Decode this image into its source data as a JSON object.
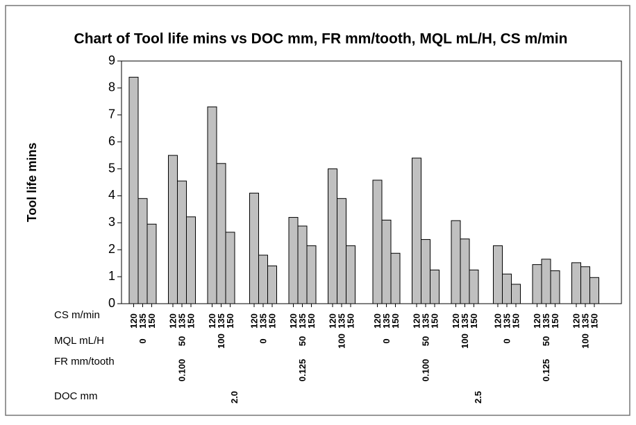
{
  "chart_data": {
    "type": "bar",
    "title": "Chart of Tool life mins vs DOC mm, FR mm/tooth, MQL mL/H, CS m/min",
    "y_label": "Tool life mins",
    "level_names": [
      "CS m/min",
      "MQL mL/H",
      "FR mm/tooth",
      "DOC mm"
    ],
    "cs_levels": [
      "120",
      "135",
      "150"
    ],
    "mql_levels": [
      "0",
      "50",
      "100"
    ],
    "fr_levels": [
      "0.100",
      "0.125"
    ],
    "doc_levels": [
      "2.0",
      "2.5"
    ],
    "color": "#c0c0c0",
    "values": [
      8.4,
      3.9,
      2.95,
      5.5,
      4.55,
      3.22,
      7.3,
      5.2,
      2.65,
      4.1,
      1.8,
      1.4,
      3.2,
      2.88,
      2.15,
      5.0,
      3.9,
      2.15,
      4.58,
      3.1,
      1.87,
      5.4,
      2.38,
      1.25,
      3.08,
      2.4,
      1.25,
      2.15,
      1.1,
      0.72,
      1.45,
      1.65,
      1.22,
      1.52,
      1.37,
      0.97
    ],
    "ylim": [
      0,
      9
    ],
    "yticks": [
      0,
      1,
      2,
      3,
      4,
      5,
      6,
      7,
      8,
      9
    ]
  }
}
